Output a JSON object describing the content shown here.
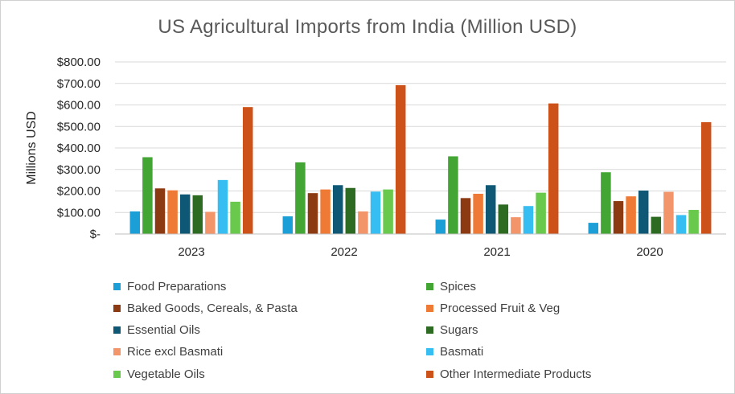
{
  "chart_data": {
    "type": "bar",
    "title": "US Agricultural Imports from India (Million USD)",
    "xlabel": "",
    "ylabel": "Millions USD",
    "ylim": [
      0,
      800
    ],
    "yticks": [
      0,
      100,
      200,
      300,
      400,
      500,
      600,
      700,
      800
    ],
    "ytick_labels": [
      "$-",
      "$100.00",
      "$200.00",
      "$300.00",
      "$400.00",
      "$500.00",
      "$600.00",
      "$700.00",
      "$800.00"
    ],
    "grid": true,
    "legend_position": "bottom",
    "categories": [
      "2023",
      "2022",
      "2021",
      "2020"
    ],
    "series": [
      {
        "name": "Food Preparations",
        "color": "#1b9fd6",
        "values": [
          105,
          82,
          67,
          52
        ]
      },
      {
        "name": "Spices",
        "color": "#43a533",
        "values": [
          357,
          333,
          361,
          287
        ]
      },
      {
        "name": "Baked Goods, Cereals, & Pasta",
        "color": "#8c3a12",
        "values": [
          212,
          190,
          167,
          153
        ]
      },
      {
        "name": "Processed Fruit & Veg",
        "color": "#ee7a35",
        "values": [
          203,
          207,
          187,
          175
        ]
      },
      {
        "name": "Essential Oils",
        "color": "#0e5876",
        "values": [
          184,
          227,
          227,
          202
        ]
      },
      {
        "name": "Sugars",
        "color": "#2e6b22",
        "values": [
          180,
          214,
          137,
          80
        ]
      },
      {
        "name": "Rice excl Basmati",
        "color": "#f2956b",
        "values": [
          103,
          105,
          78,
          196
        ]
      },
      {
        "name": "Basmati",
        "color": "#36bdf2",
        "values": [
          251,
          197,
          130,
          88
        ]
      },
      {
        "name": "Vegetable Oils",
        "color": "#69c94c",
        "values": [
          150,
          207,
          192,
          112
        ]
      },
      {
        "name": "Other Intermediate Products",
        "color": "#cc5219",
        "values": [
          590,
          692,
          607,
          520
        ]
      }
    ]
  }
}
